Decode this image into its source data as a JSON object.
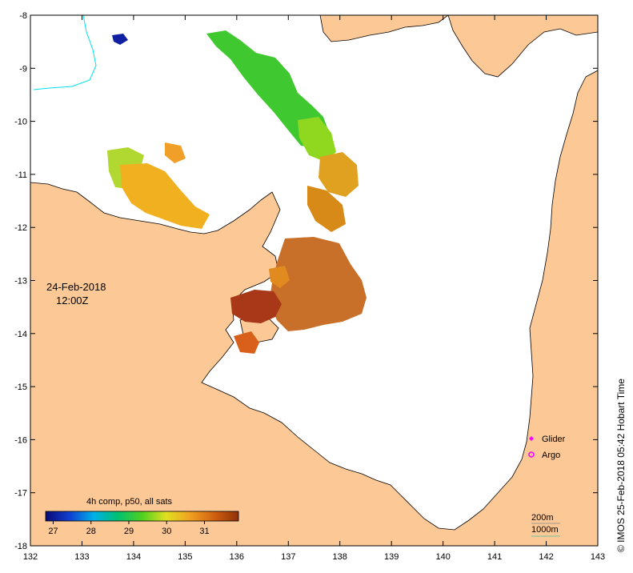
{
  "map": {
    "lon_range": [
      132,
      143
    ],
    "lat_range": [
      -18,
      -8
    ],
    "lon_ticks": [
      132,
      133,
      134,
      135,
      136,
      137,
      138,
      139,
      140,
      141,
      142,
      143
    ],
    "lat_ticks": [
      -8,
      -9,
      -10,
      -11,
      -12,
      -13,
      -14,
      -15,
      -16,
      -17,
      -18
    ],
    "land_color": "#fcc896",
    "sea_color": "#ffffff",
    "river_color": "#00e0f0"
  },
  "date_label": "24-Feb-2018",
  "time_label": "12:00Z",
  "colorbar": {
    "title": "4h comp, p50, all sats",
    "tick_labels": [
      "27",
      "28",
      "29",
      "30",
      "31"
    ],
    "tick_values": [
      27,
      28,
      29,
      30,
      31
    ],
    "range": [
      26.8,
      31.9
    ],
    "colors": [
      "#0a0a78",
      "#1040d0",
      "#00b0e8",
      "#00c070",
      "#50d020",
      "#e0e020",
      "#f0a020",
      "#d06010",
      "#903008"
    ]
  },
  "legend": {
    "glider": "Glider",
    "argo": "Argo",
    "glider_color": "#ff00ff",
    "argo_color": "#ff00ff"
  },
  "depth_legend": {
    "d200": "200m",
    "d1000": "1000m"
  },
  "credit": "© IMOS 25-Feb-2018 05:42 Hobart Time"
}
